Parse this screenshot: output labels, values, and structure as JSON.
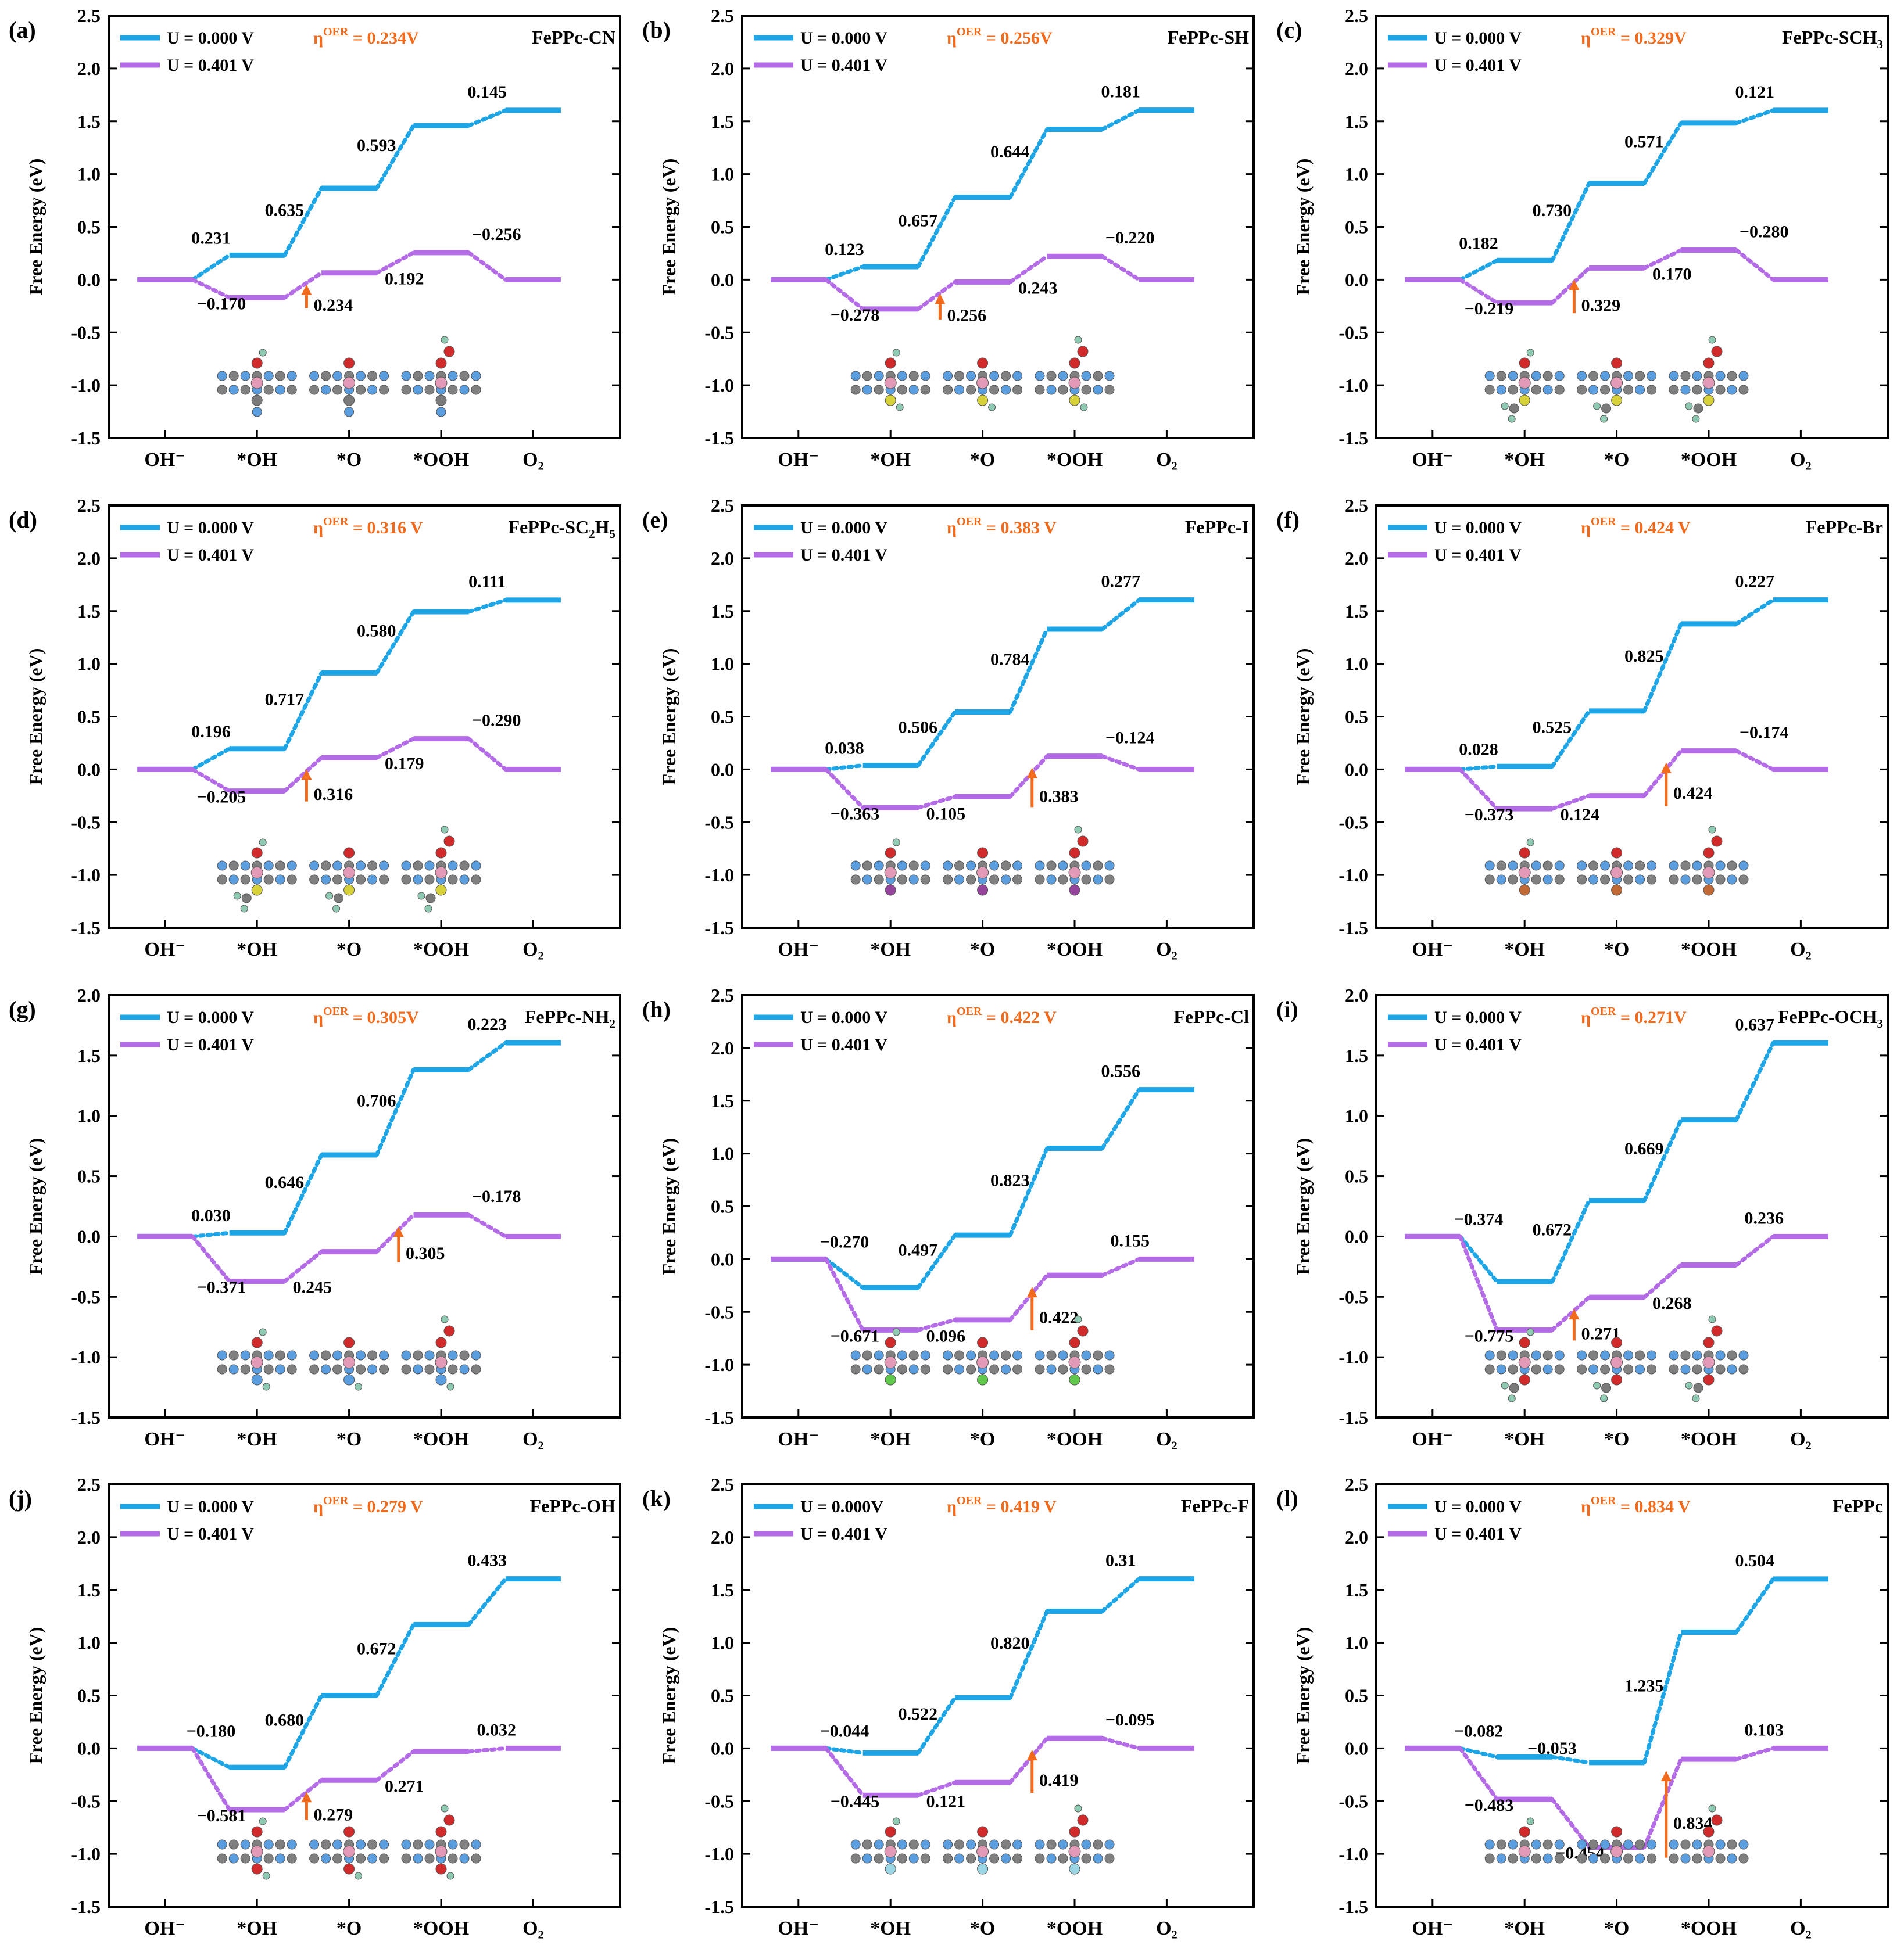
{
  "figure": {
    "colors": {
      "u0": "#1ea5e6",
      "u1": "#b46be6",
      "eta": "#f26a1b",
      "axis": "#000000"
    },
    "ylabel": "Free Energy (eV)",
    "categories": [
      "OH⁻",
      "*OH",
      "*O",
      "*OOH",
      "O₂"
    ],
    "legend_u0": "U = 0.000 V",
    "legend_u1": "U = 0.401 V"
  },
  "chart_data": [
    {
      "type": "line",
      "panel": "(a)",
      "name": "FePPc-CN",
      "eta_label": "η",
      "eta_sup": "OER",
      "eta_value": " = 0.234V",
      "legend_u0": "U = 0.000 V",
      "legend_u1": "U = 0.401 V",
      "ylim": [
        -1.5,
        2.5
      ],
      "yticks": [
        "2.5",
        "2.0",
        "1.5",
        "1.0",
        "0.5",
        "0.0",
        "-0.5",
        "-1.0",
        "-1.5"
      ],
      "series": [
        {
          "name": "U = 0.000 V",
          "values": [
            0,
            0.231,
            0.866,
            1.459,
            1.604
          ]
        },
        {
          "name": "U = 0.401 V",
          "values": [
            0,
            -0.17,
            0.064,
            0.256,
            0
          ]
        }
      ],
      "labels_u0": [
        "0.231",
        "0.635",
        "0.593",
        "0.145"
      ],
      "labels_u1": [
        "−0.170",
        "0.234",
        "0.192",
        "−0.256"
      ],
      "pds_step": 1,
      "substituent": "CN"
    },
    {
      "type": "line",
      "panel": "(b)",
      "name": "FePPc-SH",
      "eta_label": "η",
      "eta_sup": "OER",
      "eta_value": " = 0.256V",
      "legend_u0": "U = 0.000 V",
      "legend_u1": "U = 0.401 V",
      "ylim": [
        -1.5,
        2.5
      ],
      "yticks": [
        "2.5",
        "2.0",
        "1.5",
        "1.0",
        "0.5",
        "0.0",
        "-0.5",
        "-1.0",
        "-1.5"
      ],
      "series": [
        {
          "name": "U = 0.000 V",
          "values": [
            0,
            0.123,
            0.78,
            1.424,
            1.605
          ]
        },
        {
          "name": "U = 0.401 V",
          "values": [
            0,
            -0.278,
            -0.022,
            0.221,
            0
          ]
        }
      ],
      "labels_u0": [
        "0.123",
        "0.657",
        "0.644",
        "0.181"
      ],
      "labels_u1": [
        "−0.278",
        "0.256",
        "0.243",
        "−0.220"
      ],
      "pds_step": 1,
      "substituent": "SH"
    },
    {
      "type": "line",
      "panel": "(c)",
      "name": "FePPc-SCH",
      "name_sub": "3",
      "eta_label": "η",
      "eta_sup": "OER",
      "eta_value": " = 0.329V",
      "legend_u0": "U = 0.000 V",
      "legend_u1": "U = 0.401 V",
      "ylim": [
        -1.5,
        2.5
      ],
      "yticks": [
        "2.5",
        "2.0",
        "1.5",
        "1.0",
        "0.5",
        "0.0",
        "-0.5",
        "-1.0",
        "-1.5"
      ],
      "series": [
        {
          "name": "U = 0.000 V",
          "values": [
            0,
            0.182,
            0.912,
            1.483,
            1.604
          ]
        },
        {
          "name": "U = 0.401 V",
          "values": [
            0,
            -0.219,
            0.11,
            0.28,
            0
          ]
        }
      ],
      "labels_u0": [
        "0.182",
        "0.730",
        "0.571",
        "0.121"
      ],
      "labels_u1": [
        "−0.219",
        "0.329",
        "0.170",
        "−0.280"
      ],
      "pds_step": 1,
      "substituent": "SCH3"
    },
    {
      "type": "line",
      "panel": "(d)",
      "name": "FePPc-SC",
      "name_sub": "2",
      "name_tail": "H",
      "name_sub2": "5",
      "eta_label": "η",
      "eta_sup": "OER",
      "eta_value": " = 0.316 V",
      "legend_u0": "U = 0.000 V",
      "legend_u1": "U = 0.401 V",
      "ylim": [
        -1.5,
        2.5
      ],
      "yticks": [
        "2.5",
        "2.0",
        "1.5",
        "1.0",
        "0.5",
        "0.0",
        "-0.5",
        "-1.0",
        "-1.5"
      ],
      "series": [
        {
          "name": "U = 0.000 V",
          "values": [
            0,
            0.196,
            0.913,
            1.493,
            1.604
          ]
        },
        {
          "name": "U = 0.401 V",
          "values": [
            0,
            -0.205,
            0.111,
            0.29,
            0
          ]
        }
      ],
      "labels_u0": [
        "0.196",
        "0.717",
        "0.580",
        "0.111"
      ],
      "labels_u1": [
        "−0.205",
        "0.316",
        "0.179",
        "−0.290"
      ],
      "pds_step": 1,
      "substituent": "SC2H5"
    },
    {
      "type": "line",
      "panel": "(e)",
      "name": "FePPc-I",
      "eta_label": "η",
      "eta_sup": "OER",
      "eta_value": " = 0.383 V",
      "legend_u0": "U = 0.000 V",
      "legend_u1": "U = 0.401 V",
      "ylim": [
        -1.5,
        2.5
      ],
      "yticks": [
        "2.5",
        "2.0",
        "1.5",
        "1.0",
        "0.5",
        "0.0",
        "-0.5",
        "-1.0",
        "-1.5"
      ],
      "series": [
        {
          "name": "U = 0.000 V",
          "values": [
            0,
            0.038,
            0.544,
            1.328,
            1.605
          ]
        },
        {
          "name": "U = 0.401 V",
          "values": [
            0,
            -0.363,
            -0.258,
            0.125,
            0
          ]
        }
      ],
      "labels_u0": [
        "0.038",
        "0.506",
        "0.784",
        "0.277"
      ],
      "labels_u1": [
        "−0.363",
        "0.105",
        "0.383",
        "−0.124"
      ],
      "pds_step": 2,
      "substituent": "I"
    },
    {
      "type": "line",
      "panel": "(f)",
      "name": "FePPc-Br",
      "eta_label": "η",
      "eta_sup": "OER",
      "eta_value": " = 0.424 V",
      "legend_u0": "U = 0.000 V",
      "legend_u1": "U = 0.401 V",
      "ylim": [
        -1.5,
        2.5
      ],
      "yticks": [
        "2.5",
        "2.0",
        "1.5",
        "1.0",
        "0.5",
        "0.0",
        "-0.5",
        "-1.0",
        "-1.5"
      ],
      "series": [
        {
          "name": "U = 0.000 V",
          "values": [
            0,
            0.028,
            0.553,
            1.378,
            1.605
          ]
        },
        {
          "name": "U = 0.401 V",
          "values": [
            0,
            -0.373,
            -0.249,
            0.175,
            0
          ]
        }
      ],
      "labels_u0": [
        "0.028",
        "0.525",
        "0.825",
        "0.227"
      ],
      "labels_u1": [
        "−0.373",
        "0.124",
        "0.424",
        "−0.174"
      ],
      "pds_step": 2,
      "substituent": "Br"
    },
    {
      "type": "line",
      "panel": "(g)",
      "name": "FePPc-NH",
      "name_sub": "2",
      "eta_label": "η",
      "eta_sup": "OER",
      "eta_value": " = 0.305V",
      "legend_u0": "U = 0.000 V",
      "legend_u1": "U = 0.401 V",
      "ylim": [
        -1.5,
        2.0
      ],
      "yticks": [
        "2.0",
        "1.5",
        "1.0",
        "0.5",
        "0.0",
        "-0.5",
        "-1.0",
        "-1.5"
      ],
      "series": [
        {
          "name": "U = 0.000 V",
          "values": [
            0,
            0.03,
            0.676,
            1.382,
            1.605
          ]
        },
        {
          "name": "U = 0.401 V",
          "values": [
            0,
            -0.371,
            -0.126,
            0.179,
            0
          ]
        }
      ],
      "labels_u0": [
        "0.030",
        "0.646",
        "0.706",
        "0.223"
      ],
      "labels_u1": [
        "−0.371",
        "0.245",
        "0.305",
        "−0.178"
      ],
      "pds_step": 2,
      "substituent": "NH2"
    },
    {
      "type": "line",
      "panel": "(h)",
      "name": "FePPc-Cl",
      "eta_label": "η",
      "eta_sup": "OER",
      "eta_value": " = 0.422 V",
      "legend_u0": "U = 0.000 V",
      "legend_u1": "U = 0.401 V",
      "ylim": [
        -1.5,
        2.5
      ],
      "yticks": [
        "2.5",
        "2.0",
        "1.5",
        "1.0",
        "0.5",
        "0.0",
        "-0.5",
        "-1.0",
        "-1.5"
      ],
      "series": [
        {
          "name": "U = 0.000 V",
          "values": [
            0,
            -0.27,
            0.227,
            1.05,
            1.605
          ]
        },
        {
          "name": "U = 0.401 V",
          "values": [
            0,
            -0.671,
            -0.575,
            -0.153,
            0
          ]
        }
      ],
      "labels_u0": [
        "−0.270",
        "0.497",
        "0.823",
        "0.556"
      ],
      "labels_u1": [
        "−0.671",
        "0.096",
        "0.422",
        "0.155"
      ],
      "pds_step": 2,
      "substituent": "Cl"
    },
    {
      "type": "line",
      "panel": "(i)",
      "name": "FePPc-OCH",
      "name_sub": "3",
      "eta_label": "η",
      "eta_sup": "OER",
      "eta_value": " = 0.271V",
      "legend_u0": "U = 0.000 V",
      "legend_u1": "U = 0.401 V",
      "ylim": [
        -1.5,
        2.0
      ],
      "yticks": [
        "2.0",
        "1.5",
        "1.0",
        "0.5",
        "0.0",
        "-0.5",
        "-1.0",
        "-1.5"
      ],
      "series": [
        {
          "name": "U = 0.000 V",
          "values": [
            0,
            -0.374,
            0.298,
            0.967,
            1.604
          ]
        },
        {
          "name": "U = 0.401 V",
          "values": [
            0,
            -0.775,
            -0.504,
            -0.236,
            0
          ]
        }
      ],
      "labels_u0": [
        "−0.374",
        "0.672",
        "0.669",
        "0.637"
      ],
      "labels_u1": [
        "−0.775",
        "0.271",
        "0.268",
        "0.236"
      ],
      "pds_step": 1,
      "substituent": "OCH3"
    },
    {
      "type": "line",
      "panel": "(j)",
      "name": "FePPc-OH",
      "eta_label": "η",
      "eta_sup": "OER",
      "eta_value": " = 0.279 V",
      "legend_u0": "U = 0.000 V",
      "legend_u1": "U = 0.401 V",
      "ylim": [
        -1.5,
        2.5
      ],
      "yticks": [
        "2.5",
        "2.0",
        "1.5",
        "1.0",
        "0.5",
        "0.0",
        "-0.5",
        "-1.0",
        "-1.5"
      ],
      "series": [
        {
          "name": "U = 0.000 V",
          "values": [
            0,
            -0.18,
            0.5,
            1.172,
            1.605
          ]
        },
        {
          "name": "U = 0.401 V",
          "values": [
            0,
            -0.581,
            -0.302,
            -0.03,
            0
          ]
        }
      ],
      "labels_u0": [
        "−0.180",
        "0.680",
        "0.672",
        "0.433"
      ],
      "labels_u1": [
        "−0.581",
        "0.279",
        "0.271",
        "0.032"
      ],
      "pds_step": 1,
      "substituent": "OH"
    },
    {
      "type": "line",
      "panel": "(k)",
      "name": "FePPc-F",
      "eta_label": "η",
      "eta_sup": "OER",
      "eta_value": " = 0.419 V",
      "legend_u0": "U = 0.000V",
      "legend_u1": "U = 0.401 V",
      "ylim": [
        -1.5,
        2.5
      ],
      "yticks": [
        "2.5",
        "2.0",
        "1.5",
        "1.0",
        "0.5",
        "0.0",
        "-0.5",
        "-1.0",
        "-1.5"
      ],
      "series": [
        {
          "name": "U = 0.000V",
          "values": [
            0,
            -0.044,
            0.478,
            1.298,
            1.605
          ]
        },
        {
          "name": "U = 0.401 V",
          "values": [
            0,
            -0.445,
            -0.324,
            0.095,
            0
          ]
        }
      ],
      "labels_u0": [
        "−0.044",
        "0.522",
        "0.820",
        "0.31"
      ],
      "labels_u1": [
        "−0.445",
        "0.121",
        "0.419",
        "−0.095"
      ],
      "pds_step": 2,
      "substituent": "F"
    },
    {
      "type": "line",
      "panel": "(l)",
      "name": "FePPc",
      "eta_label": "η",
      "eta_sup": "OER",
      "eta_value": " = 0.834 V",
      "legend_u0": "U = 0.000 V",
      "legend_u1": "U = 0.401 V",
      "ylim": [
        -1.5,
        2.5
      ],
      "yticks": [
        "2.5",
        "2.0",
        "1.5",
        "1.0",
        "0.5",
        "0.0",
        "-0.5",
        "-1.0",
        "-1.5"
      ],
      "series": [
        {
          "name": "U = 0.000 V",
          "values": [
            0,
            -0.082,
            -0.135,
            1.1,
            1.604
          ]
        },
        {
          "name": "U = 0.401 V",
          "values": [
            0,
            -0.483,
            -0.937,
            -0.103,
            0
          ]
        }
      ],
      "labels_u0": [
        "−0.082",
        "−0.053",
        "1.235",
        "0.504"
      ],
      "labels_u1": [
        "−0.483",
        "−0.454",
        "0.834",
        "0.103"
      ],
      "pds_step": 2,
      "substituent": "none"
    }
  ]
}
